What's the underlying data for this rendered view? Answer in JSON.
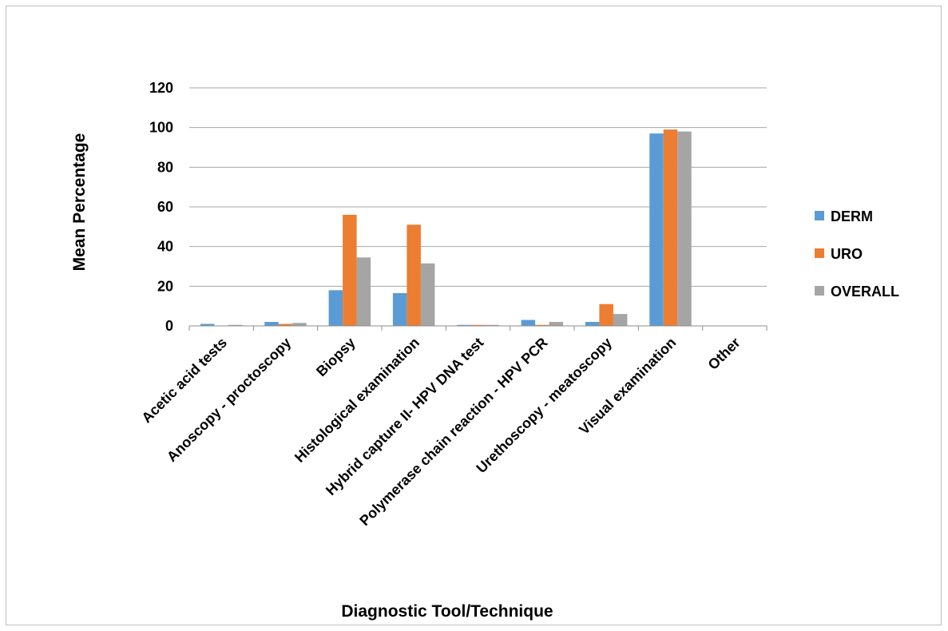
{
  "chart_data": {
    "type": "bar",
    "title": "",
    "xlabel": "Diagnostic Tool/Technique",
    "ylabel": "Mean Percentage",
    "ylim": [
      0,
      120
    ],
    "yticks": [
      0,
      20,
      40,
      60,
      80,
      100,
      120
    ],
    "grid": true,
    "legend_position": "right",
    "categories": [
      "Acetic acid tests",
      "Anoscopy - proctoscopy",
      "Biopsy",
      "Histological examination",
      "Hybrid capture II- HPV DNA test",
      "Polymerase chain reaction - HPV PCR",
      "Urethoscopy - meatoscopy",
      "Visual examination",
      "Other"
    ],
    "series": [
      {
        "name": "DERM",
        "color": "#5b9bd5",
        "values": [
          1,
          2,
          18,
          16.5,
          0.5,
          3,
          2,
          97,
          0
        ]
      },
      {
        "name": "URO",
        "color": "#ed7d31",
        "values": [
          0,
          1,
          56,
          51,
          0.5,
          0.5,
          11,
          99,
          0
        ]
      },
      {
        "name": "OVERALL",
        "color": "#a5a5a5",
        "values": [
          0.5,
          1.5,
          34.5,
          31.5,
          0.5,
          2,
          6,
          98,
          0
        ]
      }
    ]
  }
}
